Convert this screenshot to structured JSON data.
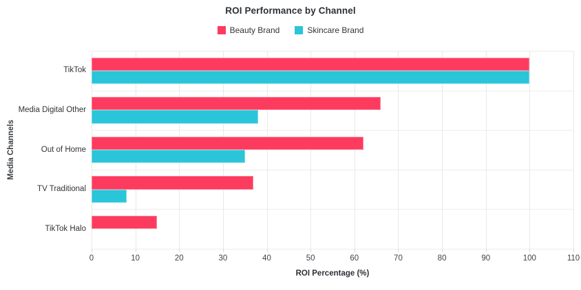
{
  "title": "ROI Performance by Channel",
  "legend": [
    {
      "label": "Beauty Brand",
      "color": "#fd3b5f"
    },
    {
      "label": "Skincare Brand",
      "color": "#2ac5d9"
    }
  ],
  "chart_data": {
    "type": "bar",
    "orientation": "horizontal",
    "title": "ROI Performance by Channel",
    "xlabel": "ROI Percentage (%)",
    "ylabel": "Media Channels",
    "categories": [
      "TikTok",
      "Media Digital Other",
      "Out of Home",
      "TV Traditional",
      "TikTok Halo"
    ],
    "series": [
      {
        "name": "Beauty Brand",
        "color": "#fd3b5f",
        "values": [
          100,
          66,
          62,
          37,
          15
        ]
      },
      {
        "name": "Skincare Brand",
        "color": "#2ac5d9",
        "values": [
          100,
          38,
          35,
          8,
          0
        ]
      }
    ],
    "xlim": [
      0,
      110
    ],
    "xticks": [
      0,
      10,
      20,
      30,
      40,
      50,
      60,
      70,
      80,
      90,
      100,
      110
    ],
    "grid": true,
    "legend_position": "top-center"
  },
  "colors": {
    "grid": "#e9e9e9",
    "text": "#333333",
    "title": "#2d3136"
  }
}
